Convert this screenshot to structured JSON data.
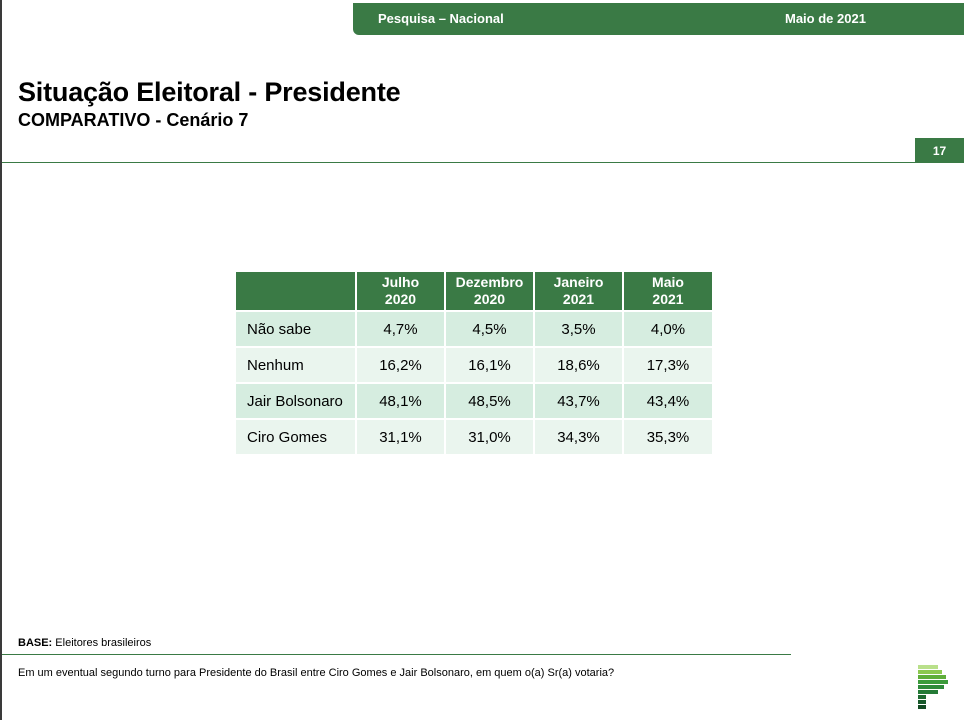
{
  "header": {
    "banner_left": "Pesquisa – Nacional",
    "banner_right": "Maio de 2021",
    "title": "Situação Eleitoral - Presidente",
    "subtitle": "COMPARATIVO - Cenário 7",
    "page_number": "17"
  },
  "table": {
    "columns": [
      {
        "line1": "Julho",
        "line2": "2020"
      },
      {
        "line1": "Dezembro",
        "line2": "2020"
      },
      {
        "line1": "Janeiro",
        "line2": "2021"
      },
      {
        "line1": "Maio",
        "line2": "2021"
      }
    ],
    "rows": [
      {
        "label": "Não sabe",
        "values": [
          "4,7%",
          "4,5%",
          "3,5%",
          "4,0%"
        ]
      },
      {
        "label": "Nenhum",
        "values": [
          "16,2%",
          "16,1%",
          "18,6%",
          "17,3%"
        ]
      },
      {
        "label": "Jair Bolsonaro",
        "values": [
          "48,1%",
          "48,5%",
          "43,7%",
          "43,4%"
        ]
      },
      {
        "label": "Ciro Gomes",
        "values": [
          "31,1%",
          "31,0%",
          "34,3%",
          "35,3%"
        ]
      }
    ]
  },
  "footer": {
    "base_label": "BASE:",
    "base_text": " Eleitores brasileiros",
    "question": "Em um eventual segundo turno para Presidente do Brasil entre Ciro Gomes e Jair Bolsonaro, em quem o(a) Sr(a) votaria?"
  },
  "colors": {
    "brand_green": "#3a7a45",
    "row_dark": "#d6ede0",
    "row_light": "#eaf5ee"
  }
}
